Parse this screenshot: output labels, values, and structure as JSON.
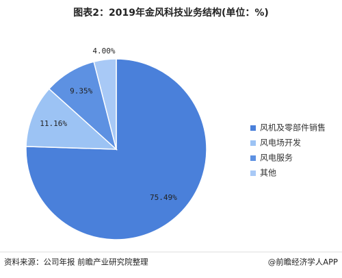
{
  "chart_data": {
    "type": "pie",
    "title": "图表2：2019年金风科技业务结构(单位：%)",
    "categories": [
      "风机及零部件销售",
      "风电场开发",
      "风电服务",
      "其他"
    ],
    "values": [
      75.49,
      11.16,
      9.35,
      4.0
    ],
    "value_labels": [
      "75.49%",
      "11.16%",
      "9.35%",
      "4.00%"
    ],
    "colors": [
      "#4a80da",
      "#9cc3f4",
      "#5d91e2",
      "#a8c9f6"
    ],
    "source": "资料来源：公司年报 前瞻产业研究院整理",
    "credit": "@前瞻经济学人APP"
  }
}
